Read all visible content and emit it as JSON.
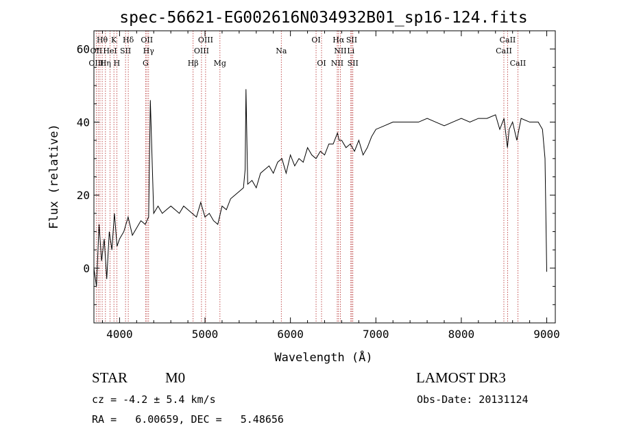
{
  "chart_data": {
    "type": "line",
    "title": "spec-56621-EG002616N034932B01_sp16-124.fits",
    "xlabel": "Wavelength (Å)",
    "ylabel": "Flux (relative)",
    "xlim": [
      3700,
      9100
    ],
    "ylim": [
      -15,
      65
    ],
    "xticks": [
      4000,
      5000,
      6000,
      7000,
      8000,
      9000
    ],
    "yticks": [
      0,
      20,
      40,
      60
    ],
    "grid": false,
    "series": [
      {
        "name": "Flux",
        "x": [
          3700,
          3730,
          3760,
          3790,
          3820,
          3850,
          3880,
          3910,
          3940,
          3970,
          4000,
          4050,
          4100,
          4150,
          4200,
          4250,
          4300,
          4340,
          4360,
          4400,
          4450,
          4500,
          4550,
          4600,
          4650,
          4700,
          4750,
          4800,
          4850,
          4900,
          4950,
          5000,
          5050,
          5100,
          5150,
          5200,
          5250,
          5300,
          5350,
          5400,
          5450,
          5470,
          5480,
          5500,
          5550,
          5600,
          5650,
          5700,
          5750,
          5800,
          5850,
          5900,
          5950,
          6000,
          6050,
          6100,
          6150,
          6200,
          6250,
          6300,
          6350,
          6400,
          6450,
          6500,
          6550,
          6570,
          6600,
          6650,
          6700,
          6750,
          6800,
          6850,
          6900,
          6950,
          7000,
          7100,
          7200,
          7300,
          7400,
          7500,
          7600,
          7700,
          7800,
          7900,
          8000,
          8100,
          8200,
          8300,
          8400,
          8450,
          8500,
          8540,
          8560,
          8600,
          8650,
          8700,
          8800,
          8900,
          8950,
          8980,
          9000
        ],
        "y": [
          0,
          -5,
          12,
          2,
          8,
          -3,
          10,
          5,
          15,
          6,
          8,
          10,
          14,
          9,
          11,
          13,
          12,
          14,
          46,
          15,
          17,
          15,
          16,
          17,
          16,
          15,
          17,
          16,
          15,
          14,
          18,
          14,
          15,
          13,
          12,
          17,
          16,
          19,
          20,
          21,
          22,
          27,
          49,
          23,
          24,
          22,
          26,
          27,
          28,
          26,
          29,
          30,
          26,
          31,
          28,
          30,
          29,
          33,
          31,
          30,
          32,
          31,
          34,
          34,
          37,
          35,
          35,
          33,
          34,
          32,
          35,
          31,
          33,
          36,
          38,
          39,
          40,
          40,
          40,
          40,
          41,
          40,
          39,
          40,
          41,
          40,
          41,
          41,
          42,
          38,
          41,
          33,
          38,
          40,
          35,
          41,
          40,
          40,
          38,
          30,
          -1
        ]
      }
    ],
    "annotations": [
      {
        "text": "Hθ",
        "row": 0,
        "wavelength": 3797
      },
      {
        "text": "K",
        "row": 0,
        "wavelength": 3934
      },
      {
        "text": "Hδ",
        "row": 0,
        "wavelength": 4102
      },
      {
        "text": "OII",
        "row": 0,
        "wavelength": 4320
      },
      {
        "text": "OIII",
        "row": 0,
        "wavelength": 5007
      },
      {
        "text": "OI",
        "row": 0,
        "wavelength": 6300
      },
      {
        "text": "Hα",
        "row": 0,
        "wavelength": 6563
      },
      {
        "text": "SII",
        "row": 0,
        "wavelength": 6717
      },
      {
        "text": "CaII",
        "row": 0,
        "wavelength": 8542
      },
      {
        "text": "OII",
        "row": 1,
        "wavelength": 3727
      },
      {
        "text": "HeI",
        "row": 1,
        "wavelength": 3889
      },
      {
        "text": "SII",
        "row": 1,
        "wavelength": 4070
      },
      {
        "text": "Hγ",
        "row": 1,
        "wavelength": 4340
      },
      {
        "text": "OIII",
        "row": 1,
        "wavelength": 4959
      },
      {
        "text": "Na",
        "row": 1,
        "wavelength": 5893
      },
      {
        "text": "NII",
        "row": 1,
        "wavelength": 6584
      },
      {
        "text": "Li",
        "row": 1,
        "wavelength": 6707
      },
      {
        "text": "CaII",
        "row": 1,
        "wavelength": 8498
      },
      {
        "text": "OIII",
        "row": 2,
        "wavelength": 3727
      },
      {
        "text": "Hη",
        "row": 2,
        "wavelength": 3835
      },
      {
        "text": "H",
        "row": 2,
        "wavelength": 3968
      },
      {
        "text": "G",
        "row": 2,
        "wavelength": 4305
      },
      {
        "text": "Hβ",
        "row": 2,
        "wavelength": 4861
      },
      {
        "text": "Mg",
        "row": 2,
        "wavelength": 5175
      },
      {
        "text": "OI",
        "row": 2,
        "wavelength": 6364
      },
      {
        "text": "NII",
        "row": 2,
        "wavelength": 6548
      },
      {
        "text": "SII",
        "row": 2,
        "wavelength": 6731
      },
      {
        "text": "CaII",
        "row": 2,
        "wavelength": 8662
      }
    ],
    "line_wavelengths": [
      3727,
      3750,
      3771,
      3797,
      3835,
      3889,
      3934,
      3968,
      4070,
      4102,
      4305,
      4320,
      4340,
      4861,
      4959,
      5007,
      5175,
      5893,
      6300,
      6364,
      6548,
      6563,
      6584,
      6707,
      6717,
      6731,
      8498,
      8542,
      8662
    ]
  },
  "info": {
    "object_class": "STAR",
    "subclass": "M0",
    "survey": "LAMOST DR3",
    "redshift_line": "cz = -4.2 ± 5.4 km/s",
    "obs_date": "Obs-Date: 20131124",
    "coords": "RA =   6.00659, DEC =   5.48656"
  },
  "colors": {
    "line_markers": "#b22222",
    "spectrum": "#000000",
    "axis": "#000000"
  }
}
